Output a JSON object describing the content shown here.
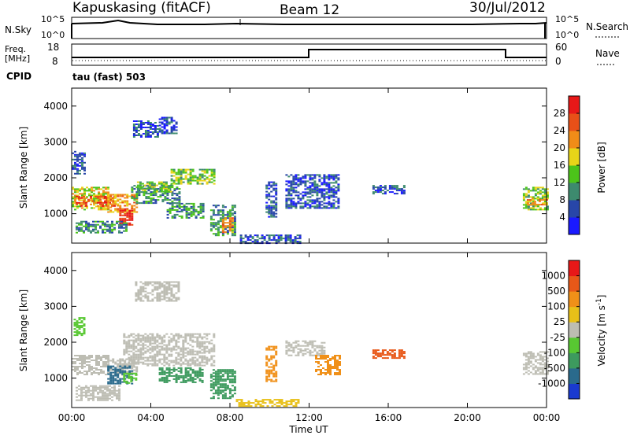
{
  "header": {
    "station": "Kapuskasing (fitACF)",
    "beam": "Beam 12",
    "date": "30/Jul/2012"
  },
  "top_panels": {
    "nsky_label": "N.Sky",
    "nsearch_label": "N.Search",
    "nsky_ticks": [
      "10^5",
      "10^0"
    ],
    "nsearch_ticks": [
      "10^5",
      "10^0"
    ],
    "freq_label_line1": "Freq.",
    "freq_label_line2": "[MHz]",
    "freq_ticks": [
      "18",
      "8"
    ],
    "nave_label": "Nave",
    "nave_ticks": [
      "60",
      "0"
    ],
    "cpid_label": "CPID",
    "cpid_text": "tau (fast) 503"
  },
  "chart_data": [
    {
      "type": "heatmap",
      "name": "power",
      "xlabel": "",
      "ylabel": "Slant Range [km]",
      "xlim": [
        0,
        24
      ],
      "ylim": [
        180,
        4500
      ],
      "yticks": [
        "1000",
        "2000",
        "3000",
        "4000"
      ],
      "colorbar": {
        "label": "Power [dB]",
        "ticks": [
          "4",
          "8",
          "12",
          "16",
          "20",
          "24",
          "28"
        ],
        "colors": [
          "#1a1aff",
          "#2846a8",
          "#3d8a6e",
          "#4cc41a",
          "#e8d418",
          "#f08c18",
          "#e85018",
          "#e81818"
        ]
      },
      "regions": [
        {
          "x0": 0.0,
          "x1": 0.6,
          "y0": 2100,
          "y1": 2750,
          "level": 1
        },
        {
          "x0": 0.0,
          "x1": 1.8,
          "y0": 1100,
          "y1": 1750,
          "level": 4
        },
        {
          "x0": 0.2,
          "x1": 2.2,
          "y0": 1200,
          "y1": 1500,
          "level": 6
        },
        {
          "x0": 1.8,
          "x1": 3.3,
          "y0": 1050,
          "y1": 1550,
          "level": 5
        },
        {
          "x0": 2.4,
          "x1": 3.1,
          "y0": 700,
          "y1": 1150,
          "level": 7
        },
        {
          "x0": 0.2,
          "x1": 2.8,
          "y0": 450,
          "y1": 800,
          "level": 2
        },
        {
          "x0": 3.0,
          "x1": 5.5,
          "y0": 1300,
          "y1": 1800,
          "level": 2
        },
        {
          "x0": 3.3,
          "x1": 5.0,
          "y0": 1600,
          "y1": 1900,
          "level": 3
        },
        {
          "x0": 5.0,
          "x1": 7.2,
          "y0": 1850,
          "y1": 2250,
          "level": 3
        },
        {
          "x0": 4.8,
          "x1": 6.6,
          "y0": 900,
          "y1": 1300,
          "level": 2
        },
        {
          "x0": 7.0,
          "x1": 8.3,
          "y0": 400,
          "y1": 1250,
          "level": 2
        },
        {
          "x0": 7.6,
          "x1": 8.1,
          "y0": 500,
          "y1": 900,
          "level": 5
        },
        {
          "x0": 3.1,
          "x1": 4.4,
          "y0": 3150,
          "y1": 3600,
          "level": 1
        },
        {
          "x0": 4.4,
          "x1": 5.3,
          "y0": 3250,
          "y1": 3700,
          "level": 1
        },
        {
          "x0": 8.5,
          "x1": 11.5,
          "y0": 200,
          "y1": 420,
          "level": 1
        },
        {
          "x0": 9.8,
          "x1": 10.3,
          "y0": 900,
          "y1": 1900,
          "level": 1
        },
        {
          "x0": 10.8,
          "x1": 13.5,
          "y0": 1150,
          "y1": 2100,
          "level": 1
        },
        {
          "x0": 15.2,
          "x1": 16.8,
          "y0": 1550,
          "y1": 1800,
          "level": 1
        },
        {
          "x0": 22.8,
          "x1": 24.0,
          "y0": 1100,
          "y1": 1750,
          "level": 3
        },
        {
          "x0": 23.0,
          "x1": 24.0,
          "y0": 1250,
          "y1": 1450,
          "level": 5
        }
      ]
    },
    {
      "type": "heatmap",
      "name": "velocity",
      "xlabel": "Time UT",
      "ylabel": "Slant Range [km]",
      "xlim": [
        0,
        24
      ],
      "ylim": [
        180,
        4500
      ],
      "xticks": [
        "00:00",
        "04:00",
        "08:00",
        "12:00",
        "16:00",
        "20:00",
        "00:00"
      ],
      "yticks": [
        "1000",
        "2000",
        "3000",
        "4000"
      ],
      "colorbar": {
        "label": "Velocity [m s^-1]",
        "ticks": [
          "1000",
          "500",
          "100",
          "25",
          "-25",
          "-100",
          "-500",
          "-1000"
        ],
        "colors": [
          "#1a3ad0",
          "#2a6a8c",
          "#3d9a5e",
          "#58c832",
          "#bdbdb3",
          "#e8c018",
          "#f09018",
          "#e85818",
          "#e81818"
        ]
      },
      "regions": [
        {
          "x0": 0.0,
          "x1": 1.8,
          "y0": 1100,
          "y1": 1650,
          "color": "#bdbdb3"
        },
        {
          "x0": 1.8,
          "x1": 3.3,
          "y0": 1100,
          "y1": 1550,
          "color": "#bdbdb3"
        },
        {
          "x0": 2.6,
          "x1": 7.2,
          "y0": 1350,
          "y1": 2250,
          "color": "#bdbdb3"
        },
        {
          "x0": 0.1,
          "x1": 0.6,
          "y0": 2200,
          "y1": 2700,
          "color": "#58c832"
        },
        {
          "x0": 1.8,
          "x1": 3.0,
          "y0": 850,
          "y1": 1350,
          "color": "#2a6a8c"
        },
        {
          "x0": 2.6,
          "x1": 3.2,
          "y0": 850,
          "y1": 1150,
          "color": "#58c832"
        },
        {
          "x0": 0.2,
          "x1": 2.4,
          "y0": 400,
          "y1": 800,
          "color": "#bdbdb3"
        },
        {
          "x0": 3.2,
          "x1": 5.4,
          "y0": 3150,
          "y1": 3700,
          "color": "#bdbdb3"
        },
        {
          "x0": 4.4,
          "x1": 6.6,
          "y0": 900,
          "y1": 1300,
          "color": "#3d9a5e"
        },
        {
          "x0": 7.0,
          "x1": 8.2,
          "y0": 450,
          "y1": 1250,
          "color": "#3d9a5e"
        },
        {
          "x0": 8.3,
          "x1": 11.5,
          "y0": 220,
          "y1": 420,
          "color": "#e8c018"
        },
        {
          "x0": 9.8,
          "x1": 10.3,
          "y0": 900,
          "y1": 1900,
          "color": "#f09018"
        },
        {
          "x0": 10.8,
          "x1": 12.8,
          "y0": 1650,
          "y1": 2050,
          "color": "#bdbdb3"
        },
        {
          "x0": 12.3,
          "x1": 13.5,
          "y0": 1100,
          "y1": 1650,
          "color": "#f09018"
        },
        {
          "x0": 15.2,
          "x1": 16.8,
          "y0": 1550,
          "y1": 1800,
          "color": "#e85818"
        },
        {
          "x0": 22.8,
          "x1": 24.0,
          "y0": 1100,
          "y1": 1750,
          "color": "#bdbdb3"
        }
      ]
    }
  ]
}
